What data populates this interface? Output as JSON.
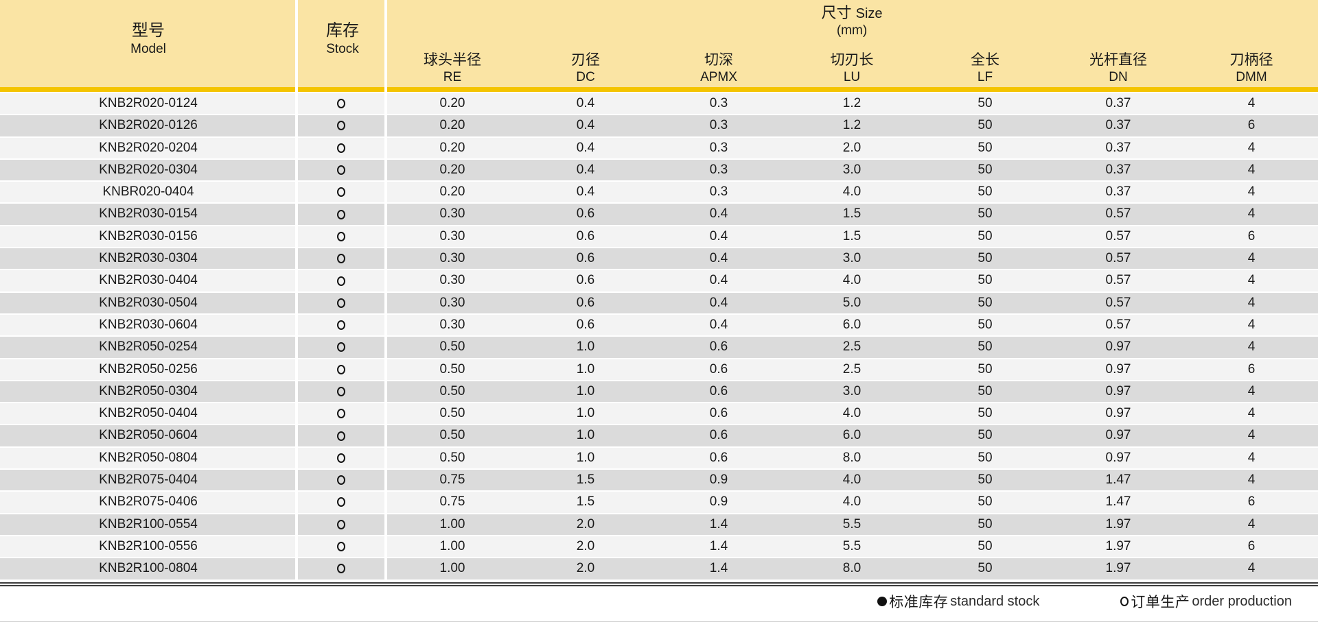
{
  "header": {
    "model": {
      "zh": "型号",
      "en": "Model"
    },
    "stock": {
      "zh": "库存",
      "en": "Stock"
    },
    "size_group": {
      "zh": "尺寸",
      "en": "Size",
      "unit": "(mm)"
    },
    "size_columns": [
      {
        "zh": "球头半径",
        "abbr": "RE"
      },
      {
        "zh": "刃径",
        "abbr": "DC"
      },
      {
        "zh": "切深",
        "abbr": "APMX"
      },
      {
        "zh": "切刃长",
        "abbr": "LU"
      },
      {
        "zh": "全长",
        "abbr": "LF"
      },
      {
        "zh": "光杆直径",
        "abbr": "DN"
      },
      {
        "zh": "刀柄径",
        "abbr": "DMM"
      }
    ]
  },
  "rows": [
    {
      "model": "KNB2R020-0124",
      "stock": "order",
      "re": "0.20",
      "dc": "0.4",
      "apmx": "0.3",
      "lu": "1.2",
      "lf": "50",
      "dn": "0.37",
      "dmm": "4"
    },
    {
      "model": "KNB2R020-0126",
      "stock": "order",
      "re": "0.20",
      "dc": "0.4",
      "apmx": "0.3",
      "lu": "1.2",
      "lf": "50",
      "dn": "0.37",
      "dmm": "6"
    },
    {
      "model": "KNB2R020-0204",
      "stock": "order",
      "re": "0.20",
      "dc": "0.4",
      "apmx": "0.3",
      "lu": "2.0",
      "lf": "50",
      "dn": "0.37",
      "dmm": "4"
    },
    {
      "model": "KNB2R020-0304",
      "stock": "order",
      "re": "0.20",
      "dc": "0.4",
      "apmx": "0.3",
      "lu": "3.0",
      "lf": "50",
      "dn": "0.37",
      "dmm": "4"
    },
    {
      "model": "KNBR020-0404",
      "stock": "order",
      "re": "0.20",
      "dc": "0.4",
      "apmx": "0.3",
      "lu": "4.0",
      "lf": "50",
      "dn": "0.37",
      "dmm": "4"
    },
    {
      "model": "KNB2R030-0154",
      "stock": "order",
      "re": "0.30",
      "dc": "0.6",
      "apmx": "0.4",
      "lu": "1.5",
      "lf": "50",
      "dn": "0.57",
      "dmm": "4"
    },
    {
      "model": "KNB2R030-0156",
      "stock": "order",
      "re": "0.30",
      "dc": "0.6",
      "apmx": "0.4",
      "lu": "1.5",
      "lf": "50",
      "dn": "0.57",
      "dmm": "6"
    },
    {
      "model": "KNB2R030-0304",
      "stock": "order",
      "re": "0.30",
      "dc": "0.6",
      "apmx": "0.4",
      "lu": "3.0",
      "lf": "50",
      "dn": "0.57",
      "dmm": "4"
    },
    {
      "model": "KNB2R030-0404",
      "stock": "order",
      "re": "0.30",
      "dc": "0.6",
      "apmx": "0.4",
      "lu": "4.0",
      "lf": "50",
      "dn": "0.57",
      "dmm": "4"
    },
    {
      "model": "KNB2R030-0504",
      "stock": "order",
      "re": "0.30",
      "dc": "0.6",
      "apmx": "0.4",
      "lu": "5.0",
      "lf": "50",
      "dn": "0.57",
      "dmm": "4"
    },
    {
      "model": "KNB2R030-0604",
      "stock": "order",
      "re": "0.30",
      "dc": "0.6",
      "apmx": "0.4",
      "lu": "6.0",
      "lf": "50",
      "dn": "0.57",
      "dmm": "4"
    },
    {
      "model": "KNB2R050-0254",
      "stock": "order",
      "re": "0.50",
      "dc": "1.0",
      "apmx": "0.6",
      "lu": "2.5",
      "lf": "50",
      "dn": "0.97",
      "dmm": "4"
    },
    {
      "model": "KNB2R050-0256",
      "stock": "order",
      "re": "0.50",
      "dc": "1.0",
      "apmx": "0.6",
      "lu": "2.5",
      "lf": "50",
      "dn": "0.97",
      "dmm": "6"
    },
    {
      "model": "KNB2R050-0304",
      "stock": "order",
      "re": "0.50",
      "dc": "1.0",
      "apmx": "0.6",
      "lu": "3.0",
      "lf": "50",
      "dn": "0.97",
      "dmm": "4"
    },
    {
      "model": "KNB2R050-0404",
      "stock": "order",
      "re": "0.50",
      "dc": "1.0",
      "apmx": "0.6",
      "lu": "4.0",
      "lf": "50",
      "dn": "0.97",
      "dmm": "4"
    },
    {
      "model": "KNB2R050-0604",
      "stock": "order",
      "re": "0.50",
      "dc": "1.0",
      "apmx": "0.6",
      "lu": "6.0",
      "lf": "50",
      "dn": "0.97",
      "dmm": "4"
    },
    {
      "model": "KNB2R050-0804",
      "stock": "order",
      "re": "0.50",
      "dc": "1.0",
      "apmx": "0.6",
      "lu": "8.0",
      "lf": "50",
      "dn": "0.97",
      "dmm": "4"
    },
    {
      "model": "KNB2R075-0404",
      "stock": "order",
      "re": "0.75",
      "dc": "1.5",
      "apmx": "0.9",
      "lu": "4.0",
      "lf": "50",
      "dn": "1.47",
      "dmm": "4"
    },
    {
      "model": "KNB2R075-0406",
      "stock": "order",
      "re": "0.75",
      "dc": "1.5",
      "apmx": "0.9",
      "lu": "4.0",
      "lf": "50",
      "dn": "1.47",
      "dmm": "6"
    },
    {
      "model": "KNB2R100-0554",
      "stock": "order",
      "re": "1.00",
      "dc": "2.0",
      "apmx": "1.4",
      "lu": "5.5",
      "lf": "50",
      "dn": "1.97",
      "dmm": "4"
    },
    {
      "model": "KNB2R100-0556",
      "stock": "order",
      "re": "1.00",
      "dc": "2.0",
      "apmx": "1.4",
      "lu": "5.5",
      "lf": "50",
      "dn": "1.97",
      "dmm": "6"
    },
    {
      "model": "KNB2R100-0804",
      "stock": "order",
      "re": "1.00",
      "dc": "2.0",
      "apmx": "1.4",
      "lu": "8.0",
      "lf": "50",
      "dn": "1.97",
      "dmm": "4"
    }
  ],
  "legend": {
    "standard": {
      "zh": "标准库存",
      "en": "standard stock"
    },
    "order": {
      "zh": "订单生产",
      "en": "order production"
    }
  },
  "colors": {
    "header_bg": "#FAE4A4",
    "gold_bar": "#F4C400",
    "row_light": "#F3F3F3",
    "row_dark": "#DBDBDB",
    "rule_dark": "#3C3C3C",
    "text": "#1A1A1A"
  }
}
